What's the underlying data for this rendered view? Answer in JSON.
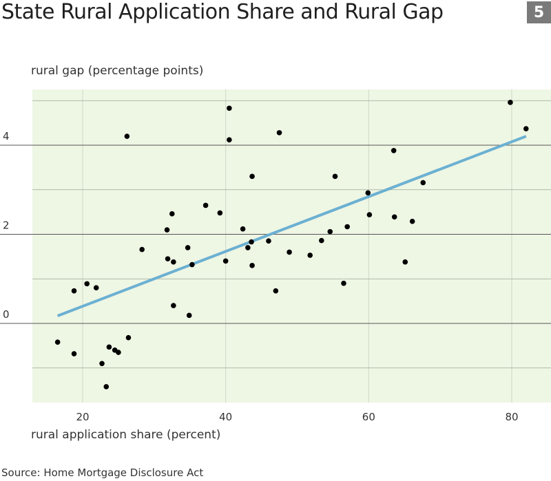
{
  "header": {
    "title": "State Rural Application Share and Rural Gap",
    "badge": "5"
  },
  "footer": {
    "source": "Source: Home Mortgage Disclosure Act"
  },
  "colors": {
    "plot_background": "#eef6e4",
    "points": "#000000",
    "trend_line": "#6bb0d2",
    "gridlines": "#555555",
    "badge": "#7a7a7a"
  },
  "chart_data": {
    "type": "scatter",
    "title": "State Rural Application Share and Rural Gap",
    "xlabel": "rural application share (percent)",
    "ylabel": "rural gap (percentage points)",
    "xlim": [
      13.2,
      80
    ],
    "ylim": [
      -1.75,
      5.15
    ],
    "x_ticks": [
      20,
      40,
      60,
      80
    ],
    "y_ticks": [
      0,
      2,
      4
    ],
    "y_minor_gridlines": [
      -1,
      1,
      3,
      5
    ],
    "grid": true,
    "legend": "none",
    "points": [
      [
        16.5,
        -0.42
      ],
      [
        18.8,
        -0.68
      ],
      [
        18.8,
        0.73
      ],
      [
        20.6,
        0.89
      ],
      [
        21.9,
        0.8
      ],
      [
        22.7,
        -0.9
      ],
      [
        23.3,
        -1.42
      ],
      [
        23.7,
        -0.53
      ],
      [
        24.5,
        -0.6
      ],
      [
        25.0,
        -0.65
      ],
      [
        26.2,
        4.2
      ],
      [
        26.4,
        -0.32
      ],
      [
        28.3,
        1.66
      ],
      [
        31.8,
        2.1
      ],
      [
        31.9,
        1.45
      ],
      [
        32.5,
        2.46
      ],
      [
        32.7,
        1.38
      ],
      [
        32.7,
        0.4
      ],
      [
        34.7,
        1.7
      ],
      [
        34.9,
        0.18
      ],
      [
        35.3,
        1.32
      ],
      [
        37.2,
        2.65
      ],
      [
        39.2,
        2.48
      ],
      [
        40.0,
        1.4
      ],
      [
        40.5,
        4.83
      ],
      [
        40.5,
        4.12
      ],
      [
        42.4,
        2.12
      ],
      [
        43.1,
        1.7
      ],
      [
        43.6,
        1.83
      ],
      [
        43.7,
        3.3
      ],
      [
        43.7,
        1.3
      ],
      [
        46.0,
        1.85
      ],
      [
        47.0,
        0.73
      ],
      [
        47.5,
        4.28
      ],
      [
        48.9,
        1.6
      ],
      [
        51.8,
        1.53
      ],
      [
        53.4,
        1.86
      ],
      [
        54.6,
        2.06
      ],
      [
        55.3,
        3.3
      ],
      [
        56.5,
        0.9
      ],
      [
        57.0,
        2.17
      ],
      [
        59.9,
        2.93
      ],
      [
        60.1,
        2.44
      ],
      [
        63.5,
        3.88
      ],
      [
        63.6,
        2.39
      ],
      [
        65.1,
        1.38
      ],
      [
        66.1,
        2.29
      ],
      [
        67.6,
        3.16
      ],
      [
        79.8,
        4.96
      ],
      [
        82.0,
        4.37
      ]
    ],
    "trend_line": {
      "x": [
        16.5,
        82.0
      ],
      "y": [
        0.17,
        4.2
      ]
    }
  }
}
